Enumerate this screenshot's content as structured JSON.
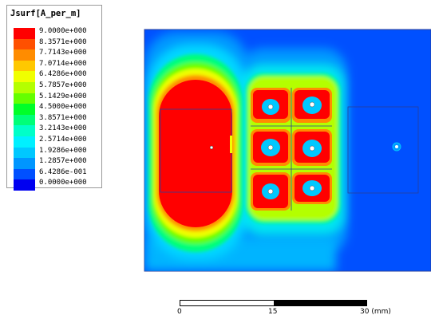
{
  "legend": {
    "title": "Jsurf[A_per_m]",
    "levels": [
      {
        "label": "9.0000e+000",
        "color": "#ff0000"
      },
      {
        "label": "8.3571e+000",
        "color": "#ff5000"
      },
      {
        "label": "7.7143e+000",
        "color": "#ff8c00"
      },
      {
        "label": "7.0714e+000",
        "color": "#ffc800"
      },
      {
        "label": "6.4286e+000",
        "color": "#f0ff00"
      },
      {
        "label": "5.7857e+000",
        "color": "#b4ff00"
      },
      {
        "label": "5.1429e+000",
        "color": "#64ff00"
      },
      {
        "label": "4.5000e+000",
        "color": "#00ff28"
      },
      {
        "label": "3.8571e+000",
        "color": "#00ff78"
      },
      {
        "label": "3.2143e+000",
        "color": "#00ffc8"
      },
      {
        "label": "2.5714e+000",
        "color": "#00f0ff"
      },
      {
        "label": "1.9286e+000",
        "color": "#00c8ff"
      },
      {
        "label": "1.2857e+000",
        "color": "#0096ff"
      },
      {
        "label": "6.4286e-001",
        "color": "#0050ff"
      },
      {
        "label": "0.0000e+000",
        "color": "#0000f0"
      }
    ]
  },
  "scale": {
    "labels": [
      "0",
      "15",
      "30 (mm)"
    ]
  }
}
